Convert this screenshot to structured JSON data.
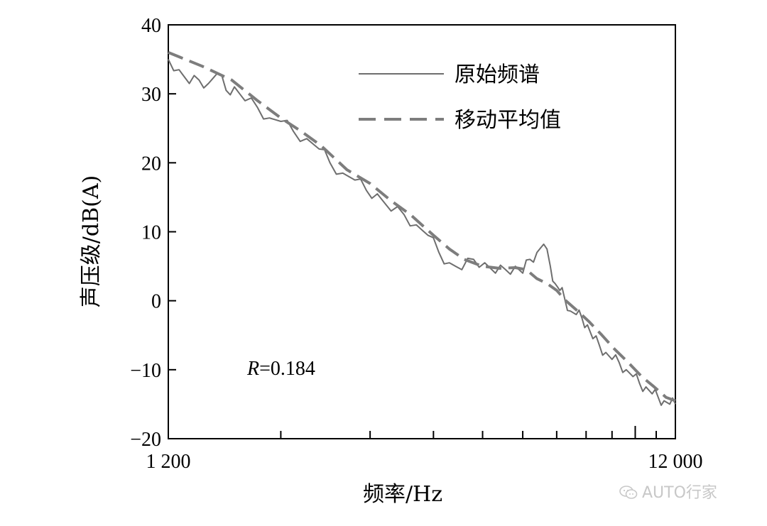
{
  "chart_data": {
    "type": "line",
    "xscale": "log",
    "xlim": [
      1200,
      12000
    ],
    "ylim": [
      -20,
      40
    ],
    "xlabel": "频率/Hz",
    "ylabel": "声压级/dB(A)",
    "x_tick_labels": [
      "1 200",
      "12 000"
    ],
    "y_ticks": [
      40,
      30,
      20,
      10,
      0,
      -10,
      -20
    ],
    "y_tick_labels": [
      "40",
      "30",
      "20",
      "10",
      "0",
      "−10",
      "−20"
    ],
    "legend_position": "top-right",
    "annotation": {
      "italic": "R",
      "rest": "=0.184"
    },
    "colors": {
      "raw": "#6e6e6e",
      "avg": "#7d7d7d"
    },
    "series": [
      {
        "name": "原始频谱",
        "style": "solid",
        "x": [
          1200,
          1260,
          1320,
          1380,
          1440,
          1500,
          1560,
          1620,
          1700,
          1800,
          1900,
          2000,
          2120,
          2250,
          2380,
          2500,
          2650,
          2800,
          2950,
          3100,
          3300,
          3500,
          3700,
          3900,
          4100,
          4300,
          4550,
          4800,
          5050,
          5300,
          5550,
          5800,
          6000,
          6200,
          6400,
          6600,
          6800,
          6950,
          7100,
          7250,
          7450,
          7650,
          7850,
          8050,
          8250,
          8500,
          8750,
          9000,
          9300,
          9600,
          9900,
          10200,
          10500,
          10800,
          11100,
          11400,
          11700,
          12000
        ],
        "y": [
          35,
          33.5,
          31.5,
          32,
          31.5,
          33,
          30.5,
          31,
          29,
          28,
          26.5,
          26,
          24.5,
          23.5,
          22,
          20,
          18.5,
          17.5,
          16,
          15.5,
          13,
          12.5,
          11,
          9.5,
          7,
          5.5,
          4.5,
          6,
          5.5,
          4,
          4.5,
          5,
          4,
          6,
          7,
          8.2,
          5,
          2.5,
          1.5,
          0.5,
          -1.5,
          -2,
          -2.5,
          -3.5,
          -5.5,
          -6.5,
          -7.5,
          -8.5,
          -9,
          -10,
          -11,
          -12,
          -12.5,
          -13.5,
          -14,
          -14.5,
          -15,
          -15
        ]
      },
      {
        "name": "移动平均值",
        "style": "dashed",
        "x": [
          1200,
          1400,
          1600,
          1800,
          2000,
          2200,
          2400,
          2700,
          3000,
          3300,
          3600,
          4000,
          4300,
          4600,
          5000,
          5400,
          5800,
          6100,
          6400,
          6700,
          7000,
          7300,
          7700,
          8100,
          8600,
          9100,
          9700,
          10300,
          10900,
          11500,
          12000
        ],
        "y": [
          36,
          34,
          32,
          29,
          26.5,
          24.5,
          22.5,
          19,
          17,
          14.5,
          12.5,
          9.5,
          7.5,
          6,
          5,
          4.7,
          4.8,
          4.5,
          3.2,
          2.5,
          1.5,
          0,
          -1.5,
          -3,
          -5,
          -7,
          -9,
          -11,
          -12.5,
          -14,
          -14.5
        ]
      }
    ]
  },
  "watermark": "AUTO行家"
}
